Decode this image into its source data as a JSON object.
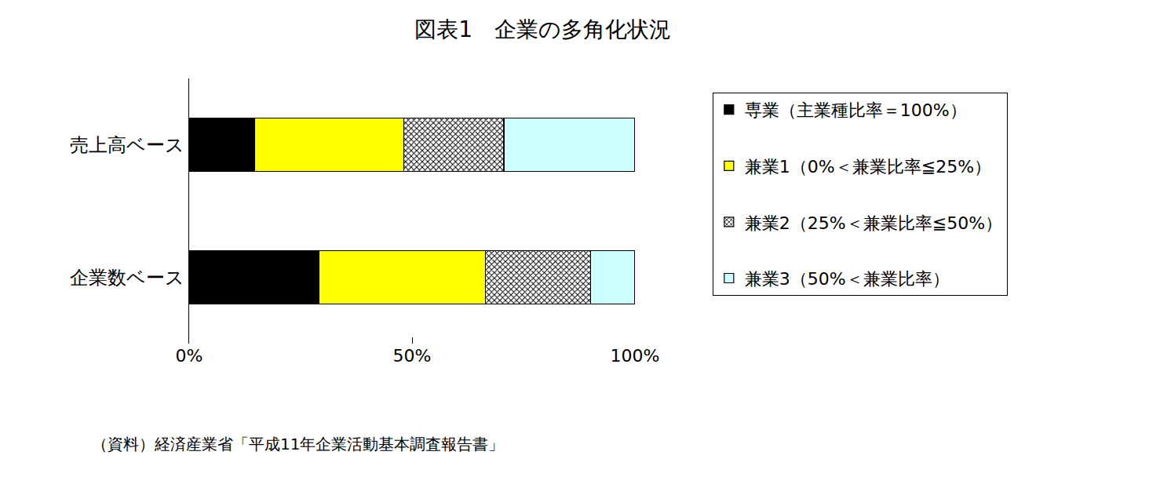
{
  "chart_data": {
    "type": "bar",
    "title": "図表1　企業の多角化状況",
    "orientation": "horizontal",
    "stacked": true,
    "grid": false,
    "legend": "right",
    "categories": [
      "売上高ベース",
      "企業数ベース"
    ],
    "series": [
      {
        "name": "専業（主業種比率＝100%）",
        "color": "#000000",
        "values": [
          14.6,
          29.2
        ]
      },
      {
        "name": "兼業1（0%＜兼業比率≦25%）",
        "color": "#ffff00",
        "values": [
          33.6,
          37.3
        ]
      },
      {
        "name": "兼業2（25%＜兼業比率≦50%）",
        "color": "#ffffff",
        "marker": "hatch",
        "values": [
          22.4,
          23.6
        ]
      },
      {
        "name": "兼業3（50%＜兼業比率）",
        "color": "#ccffff",
        "values": [
          29.4,
          9.9
        ]
      }
    ],
    "xlim": [
      0,
      100
    ],
    "xticks": [
      {
        "value": 0,
        "label": "0%"
      },
      {
        "value": 50,
        "label": "50%"
      },
      {
        "value": 100,
        "label": "100%"
      }
    ],
    "source": "（資料）経済産業省「平成11年企業活動基本調査報告書」"
  }
}
